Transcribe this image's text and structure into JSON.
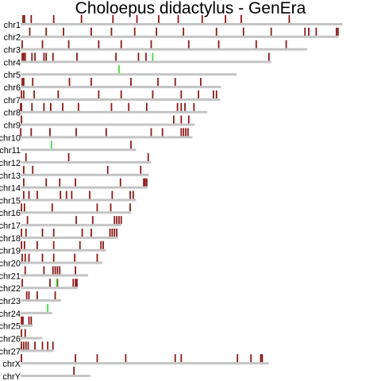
{
  "chart_data": {
    "type": "chromosome",
    "title": "Choloepus didactylus - GenEra",
    "mark_color": "#8b1a1a",
    "highlight_color": "#44dd44",
    "bar_color": "#c4c4c4",
    "xlim": [
      0,
      454
    ],
    "chromosomes": [
      {
        "name": "chr1",
        "length": 429,
        "marks": [
          3,
          5,
          14,
          44,
          81,
          123,
          155,
          184,
          210,
          242,
          273,
          294,
          358
        ],
        "highlights": []
      },
      {
        "name": "chr2",
        "length": 424,
        "marks": [
          12,
          34,
          57,
          94,
          121,
          152,
          181,
          217,
          261,
          297,
          334,
          379,
          384,
          394,
          421,
          423
        ],
        "highlights": []
      },
      {
        "name": "chr3",
        "length": 382,
        "marks": [
          2,
          29,
          64,
          104,
          134,
          174,
          224,
          264,
          314,
          354
        ],
        "highlights": []
      },
      {
        "name": "chr4",
        "length": 334,
        "marks": [
          2,
          4,
          6,
          15,
          19,
          31,
          34,
          43,
          75,
          127,
          157,
          167,
          331
        ],
        "highlights": [
          176
        ]
      },
      {
        "name": "chr5",
        "length": 288,
        "marks": [],
        "highlights": [
          131
        ]
      },
      {
        "name": "chr6",
        "length": 267,
        "marks": [
          2,
          4,
          16,
          65,
          94,
          147,
          183,
          206,
          240
        ],
        "highlights": []
      },
      {
        "name": "chr7",
        "length": 266,
        "marks": [
          1,
          4,
          18,
          50,
          104,
          134,
          176,
          214,
          237,
          257,
          261
        ],
        "highlights": []
      },
      {
        "name": "chr8",
        "length": 249,
        "marks": [
          0,
          1,
          15,
          31,
          40,
          56,
          77,
          121,
          144,
          168,
          209,
          214,
          219,
          231
        ],
        "highlights": []
      },
      {
        "name": "chr9",
        "length": 232,
        "marks": [
          1,
          204,
          214,
          224
        ],
        "highlights": []
      },
      {
        "name": "chr10",
        "length": 229,
        "marks": [
          0,
          14,
          39,
          74,
          114,
          174,
          189,
          214,
          217,
          220,
          223
        ],
        "highlights": []
      },
      {
        "name": "chr11",
        "length": 154,
        "marks": [
          147
        ],
        "highlights": [
          41
        ]
      },
      {
        "name": "chr12",
        "length": 174,
        "marks": [
          7,
          64,
          170
        ],
        "highlights": []
      },
      {
        "name": "chr13",
        "length": 171,
        "marks": [
          4,
          16,
          116,
          160
        ],
        "highlights": []
      },
      {
        "name": "chr14",
        "length": 169,
        "marks": [
          4,
          34,
          52,
          73,
          133,
          164,
          166,
          168
        ],
        "highlights": []
      },
      {
        "name": "chr15",
        "length": 154,
        "marks": [
          4,
          11,
          22,
          53,
          61,
          68,
          92,
          122,
          146,
          150
        ],
        "highlights": []
      },
      {
        "name": "chr16",
        "length": 147,
        "marks": [
          1,
          5,
          42,
          102,
          120,
          146
        ],
        "highlights": []
      },
      {
        "name": "chr17",
        "length": 134,
        "marks": [
          9,
          74,
          96,
          125,
          128,
          131,
          134
        ],
        "highlights": []
      },
      {
        "name": "chr18",
        "length": 130,
        "marks": [
          1,
          7,
          29,
          44,
          82,
          94,
          119,
          122,
          125,
          128
        ],
        "highlights": []
      },
      {
        "name": "chr19",
        "length": 114,
        "marks": [
          1,
          5,
          22,
          44,
          79,
          107,
          110
        ],
        "highlights": []
      },
      {
        "name": "chr20",
        "length": 109,
        "marks": [
          2,
          6,
          11,
          29,
          44,
          72,
          102
        ],
        "highlights": []
      },
      {
        "name": "chr21",
        "length": 90,
        "marks": [
          6,
          31,
          43,
          46,
          49,
          52,
          73
        ],
        "highlights": []
      },
      {
        "name": "chr22",
        "length": 76,
        "marks": [
          2,
          39,
          49,
          70,
          73,
          75
        ],
        "highlights": [
          48
        ]
      },
      {
        "name": "chr23",
        "length": 54,
        "marks": [
          8,
          11,
          22,
          46
        ],
        "highlights": []
      },
      {
        "name": "chr24",
        "length": 42,
        "marks": [],
        "highlights": [
          36
        ]
      },
      {
        "name": "chr25",
        "length": 16,
        "marks": [
          1,
          3,
          11,
          14
        ],
        "highlights": []
      },
      {
        "name": "chr26",
        "length": 29,
        "marks": [
          1,
          6
        ],
        "highlights": []
      },
      {
        "name": "chr27",
        "length": 44,
        "marks": [
          1,
          4,
          7,
          10,
          19,
          29,
          36,
          43
        ],
        "highlights": []
      },
      {
        "name": "chrX",
        "length": 331,
        "marks": [
          1,
          73,
          102,
          140,
          206,
          214,
          289,
          307,
          320,
          322
        ],
        "highlights": []
      },
      {
        "name": "chrY",
        "length": 93,
        "marks": [
          71
        ],
        "highlights": []
      }
    ]
  }
}
